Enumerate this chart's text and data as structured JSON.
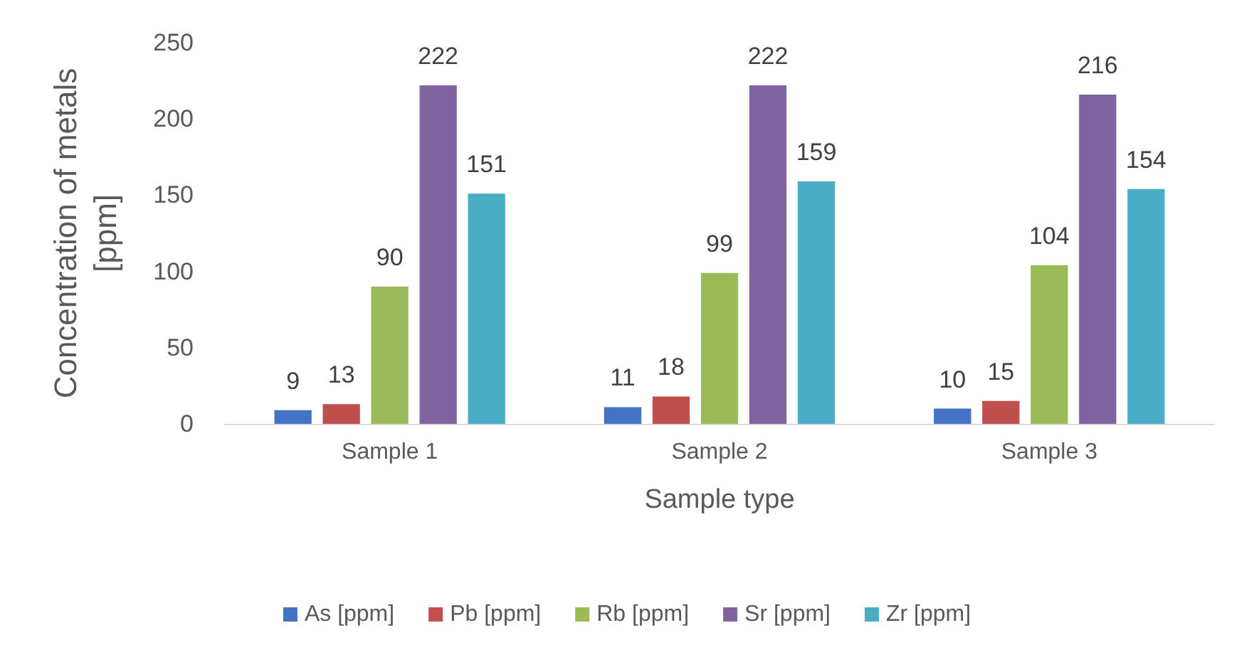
{
  "chart_data": {
    "type": "bar",
    "xlabel": "Sample type",
    "ylabel": "Concentration of metals\n[ppm]",
    "categories": [
      "Sample 1",
      "Sample 2",
      "Sample 3"
    ],
    "series": [
      {
        "name": "As [ppm]",
        "color": "#4472c4",
        "values": [
          9,
          11,
          10
        ]
      },
      {
        "name": "Pb [ppm]",
        "color": "#c0504d",
        "values": [
          13,
          18,
          15
        ]
      },
      {
        "name": "Rb [ppm]",
        "color": "#9bbb59",
        "values": [
          90,
          99,
          104
        ]
      },
      {
        "name": "Sr [ppm]",
        "color": "#8064a2",
        "values": [
          222,
          222,
          216
        ]
      },
      {
        "name": "Zr [ppm]",
        "color": "#4bacc6",
        "values": [
          151,
          159,
          154
        ]
      }
    ],
    "ylim": [
      0,
      250
    ],
    "yticks": [
      0,
      50,
      100,
      150,
      200,
      250
    ],
    "grid": false,
    "legend": "bottom",
    "data_labels": true
  }
}
